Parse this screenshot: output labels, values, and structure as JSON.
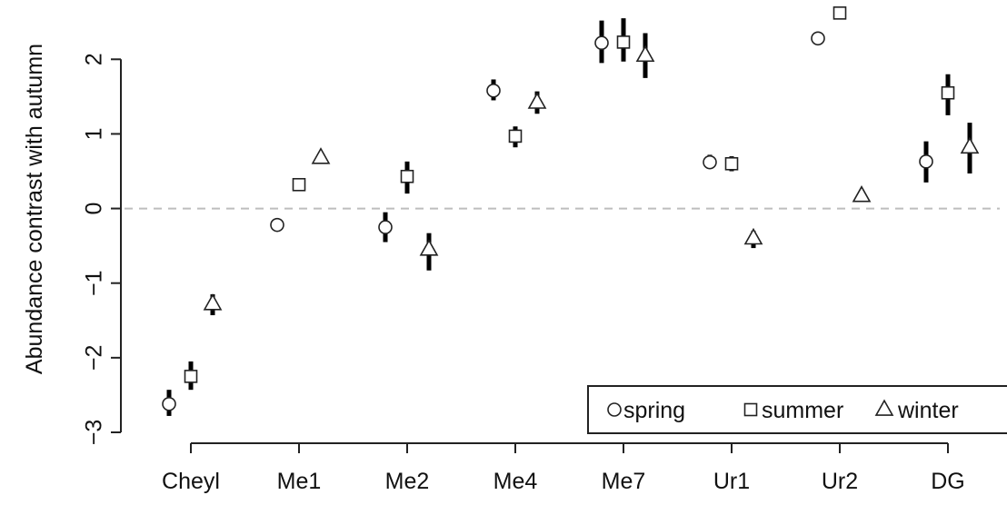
{
  "chart_data": {
    "type": "scatter",
    "categories": [
      "Cheyl",
      "Me1",
      "Me2",
      "Me4",
      "Me7",
      "Ur1",
      "Ur2",
      "DG"
    ],
    "ylabel": "Abundance contrast with autumn",
    "xlabel": "",
    "title": "",
    "ylim": [
      -3,
      2.6
    ],
    "yticks": [
      -3,
      -2,
      -1,
      0,
      1,
      2
    ],
    "reference_line": 0,
    "legend_position": "bottom-right",
    "series": [
      {
        "name": "spring",
        "marker": "circle",
        "values": [
          -2.62,
          -0.22,
          -0.25,
          1.58,
          2.22,
          0.62,
          2.28,
          0.63
        ],
        "ci_lower": [
          -2.78,
          -0.22,
          -0.45,
          1.45,
          1.95,
          0.53,
          2.28,
          0.35
        ],
        "ci_upper": [
          -2.43,
          -0.22,
          -0.05,
          1.73,
          2.52,
          0.72,
          2.28,
          0.9
        ]
      },
      {
        "name": "summer",
        "marker": "square",
        "values": [
          -2.25,
          0.32,
          0.43,
          0.97,
          2.23,
          0.6,
          2.62,
          1.55
        ],
        "ci_lower": [
          -2.43,
          0.32,
          0.2,
          0.82,
          1.97,
          0.5,
          2.62,
          1.25
        ],
        "ci_upper": [
          -2.05,
          0.32,
          0.63,
          1.1,
          2.55,
          0.7,
          2.62,
          1.8
        ]
      },
      {
        "name": "winter",
        "marker": "triangle",
        "values": [
          -1.28,
          0.68,
          -0.55,
          1.42,
          2.05,
          -0.4,
          0.17,
          0.82
        ],
        "ci_lower": [
          -1.43,
          0.68,
          -0.83,
          1.27,
          1.75,
          -0.53,
          0.17,
          0.47
        ],
        "ci_upper": [
          -1.15,
          0.68,
          -0.33,
          1.57,
          2.35,
          -0.3,
          0.17,
          1.15
        ]
      }
    ]
  }
}
